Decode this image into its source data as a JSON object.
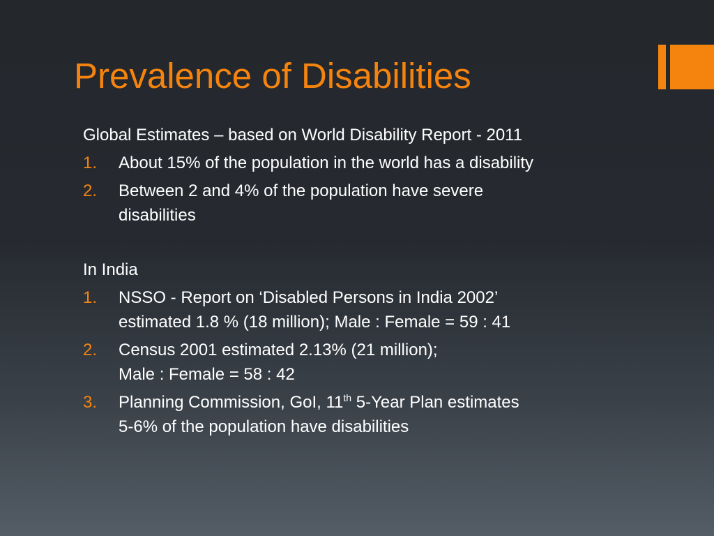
{
  "title": "Prevalence of Disabilities",
  "accent_color": "#f5840f",
  "background_color": "#262a30",
  "global": {
    "heading": "Global Estimates – based on World Disability Report - 2011",
    "items": [
      {
        "num": "1.",
        "lines": [
          "About 15% of the population in the world has a disability"
        ]
      },
      {
        "num": "2.",
        "lines": [
          "Between 2 and 4% of the population have severe",
          "disabilities"
        ]
      }
    ]
  },
  "india": {
    "heading": "In India",
    "items": [
      {
        "num": "1.",
        "lines": [
          "NSSO - Report on ‘Disabled Persons in India 2002’",
          "estimated 1.8 % (18 million); Male : Female = 59 : 41"
        ]
      },
      {
        "num": "2.",
        "lines": [
          "Census 2001 estimated 2.13% (21 million);",
          "Male : Female = 58 : 42"
        ]
      },
      {
        "num": "3.",
        "line1_before_sup": "Planning Commission, GoI, 11",
        "line1_sup": "th",
        "line1_after_sup": " 5-Year Plan estimates",
        "line2": "5-6% of the population have disabilities"
      }
    ]
  }
}
